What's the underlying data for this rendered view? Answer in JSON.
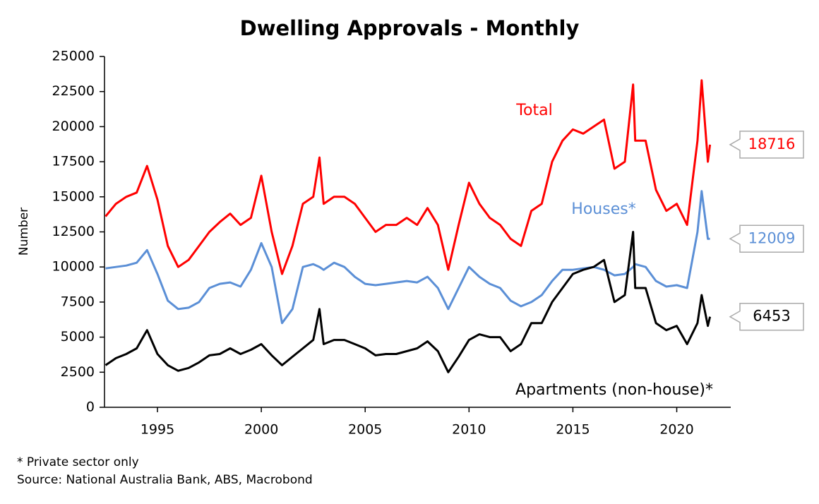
{
  "chart_data": {
    "type": "line",
    "title": "Dwelling Approvals - Monthly",
    "ylabel": "Number",
    "x": [
      1992.5,
      1993.0,
      1993.5,
      1994.0,
      1994.5,
      1995.0,
      1995.5,
      1996.0,
      1996.5,
      1997.0,
      1997.5,
      1998.0,
      1998.5,
      1999.0,
      1999.5,
      2000.0,
      2000.5,
      2001.0,
      2001.5,
      2002.0,
      2002.5,
      2002.8,
      2003.0,
      2003.5,
      2004.0,
      2004.5,
      2005.0,
      2005.5,
      2006.0,
      2006.5,
      2007.0,
      2007.5,
      2008.0,
      2008.5,
      2009.0,
      2009.5,
      2010.0,
      2010.5,
      2011.0,
      2011.5,
      2012.0,
      2012.5,
      2013.0,
      2013.5,
      2014.0,
      2014.5,
      2015.0,
      2015.5,
      2016.0,
      2016.5,
      2017.0,
      2017.5,
      2017.9,
      2018.0,
      2018.5,
      2019.0,
      2019.5,
      2020.0,
      2020.5,
      2021.0,
      2021.2,
      2021.5,
      2021.6
    ],
    "series": [
      {
        "name": "Total",
        "color": "#ff0000",
        "values": [
          13600,
          14500,
          15000,
          15300,
          17200,
          14800,
          11500,
          10000,
          10500,
          11500,
          12500,
          13200,
          13800,
          13000,
          13500,
          16500,
          12500,
          9500,
          11500,
          14500,
          15000,
          17800,
          14500,
          15000,
          15000,
          14500,
          13500,
          12500,
          13000,
          13000,
          13500,
          13000,
          14200,
          13000,
          9800,
          13000,
          16000,
          14500,
          13500,
          13000,
          12000,
          11500,
          14000,
          14500,
          17500,
          19000,
          19800,
          19500,
          20000,
          20500,
          17000,
          17500,
          23000,
          19000,
          19000,
          15500,
          14000,
          14500,
          13000,
          19000,
          23300,
          17500,
          18716
        ]
      },
      {
        "name": "Houses*",
        "color": "#5b8fd6",
        "values": [
          9900,
          10000,
          10100,
          10300,
          11200,
          9500,
          7600,
          7000,
          7100,
          7500,
          8500,
          8800,
          8900,
          8600,
          9800,
          11700,
          10000,
          6000,
          7000,
          10000,
          10200,
          10000,
          9800,
          10300,
          10000,
          9300,
          8800,
          8700,
          8800,
          8900,
          9000,
          8900,
          9300,
          8500,
          7000,
          8500,
          10000,
          9300,
          8800,
          8500,
          7600,
          7200,
          7500,
          8000,
          9000,
          9800,
          9800,
          9900,
          10000,
          9800,
          9400,
          9500,
          10000,
          10200,
          10000,
          9000,
          8600,
          8700,
          8500,
          12500,
          15400,
          12000,
          12009
        ]
      },
      {
        "name": "Apartments (non-house)*",
        "color": "#000000",
        "values": [
          3000,
          3500,
          3800,
          4200,
          5500,
          3800,
          3000,
          2600,
          2800,
          3200,
          3700,
          3800,
          4200,
          3800,
          4100,
          4500,
          3700,
          3000,
          3600,
          4200,
          4800,
          7000,
          4500,
          4800,
          4800,
          4500,
          4200,
          3700,
          3800,
          3800,
          4000,
          4200,
          4700,
          4000,
          2500,
          3600,
          4800,
          5200,
          5000,
          5000,
          4000,
          4500,
          6000,
          6000,
          7500,
          8500,
          9500,
          9800,
          10000,
          10500,
          7500,
          8000,
          12500,
          8500,
          8500,
          6000,
          5500,
          5800,
          4500,
          6000,
          8000,
          5800,
          6453
        ]
      }
    ],
    "xlim": [
      1992.45,
      2022.6
    ],
    "ylim": [
      0,
      25000
    ],
    "xticks": [
      1995,
      2000,
      2005,
      2010,
      2015,
      2020
    ],
    "yticks": [
      0,
      2500,
      5000,
      7500,
      10000,
      12500,
      15000,
      17500,
      20000,
      22500,
      25000
    ],
    "footnotes": [
      "* Private sector only",
      "Source: National Australia Bank, ABS, Macrobond"
    ]
  }
}
